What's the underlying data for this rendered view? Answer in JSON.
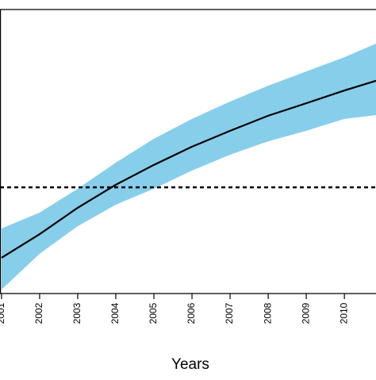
{
  "chart_data": {
    "type": "line",
    "x_label": "Years",
    "x": [
      2001,
      2002,
      2003,
      2004,
      2005,
      2006,
      2007,
      2008,
      2009,
      2010,
      2010.83
    ],
    "xlim": [
      2000.96,
      2010.83
    ],
    "xticks": [
      2001,
      2002,
      2003,
      2004,
      2005,
      2006,
      2007,
      2008,
      2009,
      2010
    ],
    "ylim": [
      0,
      100
    ],
    "mean": {
      "color": "#000000",
      "values": [
        12.6,
        20.9,
        30.2,
        38.3,
        45.3,
        51.7,
        57.3,
        62.6,
        67.0,
        71.5,
        74.9
      ]
    },
    "band": {
      "color": "#87ceeb",
      "upper": [
        22.9,
        28.5,
        36.9,
        46.1,
        54.5,
        61.5,
        67.6,
        73.2,
        78.2,
        83.2,
        88.0
      ],
      "lower": [
        1.4,
        14.0,
        23.7,
        31.3,
        36.9,
        43.3,
        48.9,
        53.6,
        57.3,
        61.5,
        62.8
      ]
    },
    "reference_line": {
      "value": 37.4,
      "color": "#000000",
      "style": "dashed"
    }
  }
}
